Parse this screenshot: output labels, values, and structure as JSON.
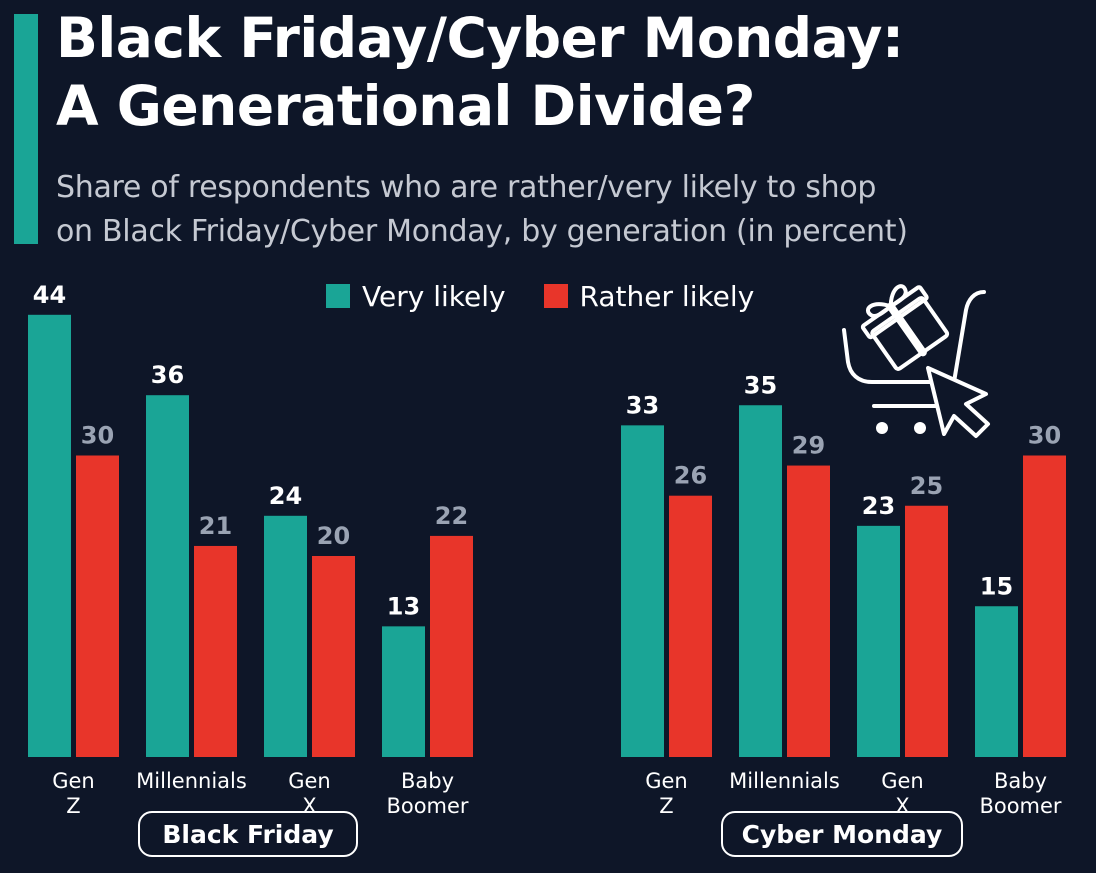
{
  "header": {
    "title_line1": "Black Friday/Cyber Monday:",
    "title_line2": "A Generational Divide?",
    "subtitle_line1": "Share of respondents who are rather/very likely to shop",
    "subtitle_line2": "on Black Friday/Cyber Monday, by generation (in percent)"
  },
  "colors": {
    "very_likely": "#1aa596",
    "rather_likely": "#e8352a",
    "background": "#0e1628",
    "accent": "#1aa596"
  },
  "icon": "shopping-cart-gift-cursor-icon",
  "chart_data": {
    "type": "bar",
    "title": "Black Friday/Cyber Monday: A Generational Divide?",
    "subtitle": "Share of respondents who are rather/very likely to shop on Black Friday/Cyber Monday, by generation (in percent)",
    "legend": [
      "Very likely",
      "Rather likely"
    ],
    "legend_position": "top-center",
    "categories": [
      "Gen Z",
      "Millennials",
      "Gen X",
      "Baby Boomer"
    ],
    "ylim": [
      0,
      44
    ],
    "grid": false,
    "groups": [
      {
        "name": "Black Friday",
        "series": [
          {
            "name": "Very likely",
            "values": [
              44,
              36,
              24,
              13
            ]
          },
          {
            "name": "Rather likely",
            "values": [
              30,
              21,
              20,
              22
            ]
          }
        ]
      },
      {
        "name": "Cyber Monday",
        "series": [
          {
            "name": "Very likely",
            "values": [
              33,
              35,
              23,
              15
            ]
          },
          {
            "name": "Rather likely",
            "values": [
              26,
              29,
              25,
              30
            ]
          }
        ]
      }
    ]
  }
}
